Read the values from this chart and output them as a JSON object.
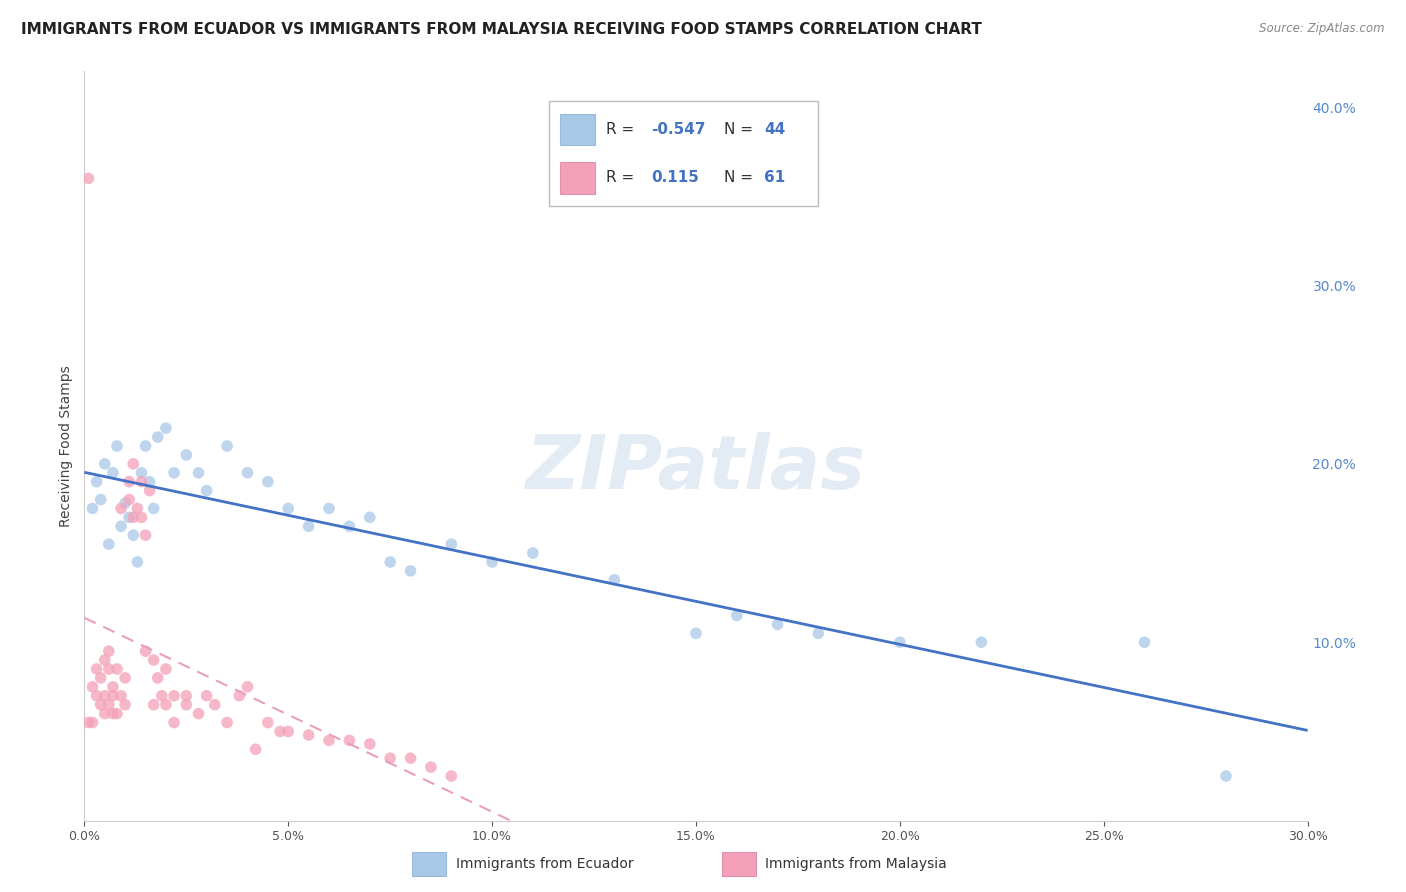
{
  "title": "IMMIGRANTS FROM ECUADOR VS IMMIGRANTS FROM MALAYSIA RECEIVING FOOD STAMPS CORRELATION CHART",
  "source": "Source: ZipAtlas.com",
  "ylabel": "Receiving Food Stamps",
  "xlim": [
    0.0,
    0.3
  ],
  "ylim": [
    0.0,
    0.42
  ],
  "x_ticks": [
    0.0,
    0.05,
    0.1,
    0.15,
    0.2,
    0.25,
    0.3
  ],
  "y_ticks_right": [
    0.1,
    0.2,
    0.3,
    0.4
  ],
  "watermark": "ZIPatlas",
  "ecuador_color": "#a8c8e8",
  "malaysia_color": "#f4a0b8",
  "ecuador_line_color": "#4472c4",
  "malaysia_line_color": "#e8a0b8",
  "background_color": "#ffffff",
  "grid_color": "#d0d0d0",
  "ecuador_R": -0.547,
  "ecuador_N": 44,
  "malaysia_R": 0.115,
  "malaysia_N": 61,
  "ecuador_x": [
    0.002,
    0.003,
    0.004,
    0.005,
    0.006,
    0.007,
    0.008,
    0.009,
    0.01,
    0.011,
    0.012,
    0.013,
    0.014,
    0.015,
    0.016,
    0.017,
    0.018,
    0.02,
    0.022,
    0.025,
    0.028,
    0.03,
    0.035,
    0.04,
    0.045,
    0.05,
    0.055,
    0.06,
    0.065,
    0.07,
    0.075,
    0.08,
    0.09,
    0.1,
    0.11,
    0.13,
    0.15,
    0.16,
    0.17,
    0.18,
    0.2,
    0.22,
    0.26,
    0.28
  ],
  "ecuador_y": [
    0.175,
    0.19,
    0.18,
    0.2,
    0.155,
    0.195,
    0.21,
    0.165,
    0.178,
    0.17,
    0.16,
    0.145,
    0.195,
    0.21,
    0.19,
    0.175,
    0.215,
    0.22,
    0.195,
    0.205,
    0.195,
    0.185,
    0.21,
    0.195,
    0.19,
    0.175,
    0.165,
    0.175,
    0.165,
    0.17,
    0.145,
    0.14,
    0.155,
    0.145,
    0.15,
    0.135,
    0.105,
    0.115,
    0.11,
    0.105,
    0.1,
    0.1,
    0.1,
    0.025
  ],
  "malaysia_x": [
    0.001,
    0.001,
    0.002,
    0.002,
    0.003,
    0.003,
    0.004,
    0.004,
    0.005,
    0.005,
    0.005,
    0.006,
    0.006,
    0.006,
    0.007,
    0.007,
    0.007,
    0.008,
    0.008,
    0.009,
    0.009,
    0.01,
    0.01,
    0.011,
    0.011,
    0.012,
    0.012,
    0.013,
    0.014,
    0.014,
    0.015,
    0.015,
    0.016,
    0.017,
    0.017,
    0.018,
    0.019,
    0.02,
    0.02,
    0.022,
    0.022,
    0.025,
    0.025,
    0.028,
    0.03,
    0.032,
    0.035,
    0.038,
    0.04,
    0.042,
    0.045,
    0.048,
    0.05,
    0.055,
    0.06,
    0.065,
    0.07,
    0.075,
    0.08,
    0.085,
    0.09
  ],
  "malaysia_y": [
    0.36,
    0.055,
    0.055,
    0.075,
    0.07,
    0.085,
    0.065,
    0.08,
    0.06,
    0.09,
    0.07,
    0.065,
    0.095,
    0.085,
    0.06,
    0.07,
    0.075,
    0.06,
    0.085,
    0.07,
    0.175,
    0.065,
    0.08,
    0.19,
    0.18,
    0.2,
    0.17,
    0.175,
    0.19,
    0.17,
    0.16,
    0.095,
    0.185,
    0.065,
    0.09,
    0.08,
    0.07,
    0.065,
    0.085,
    0.055,
    0.07,
    0.065,
    0.07,
    0.06,
    0.07,
    0.065,
    0.055,
    0.07,
    0.075,
    0.04,
    0.055,
    0.05,
    0.05,
    0.048,
    0.045,
    0.045,
    0.043,
    0.035,
    0.035,
    0.03,
    0.025
  ],
  "ecuador_marker_size": 70,
  "malaysia_marker_size": 70,
  "title_fontsize": 11,
  "axis_label_fontsize": 10,
  "tick_label_fontsize": 9
}
